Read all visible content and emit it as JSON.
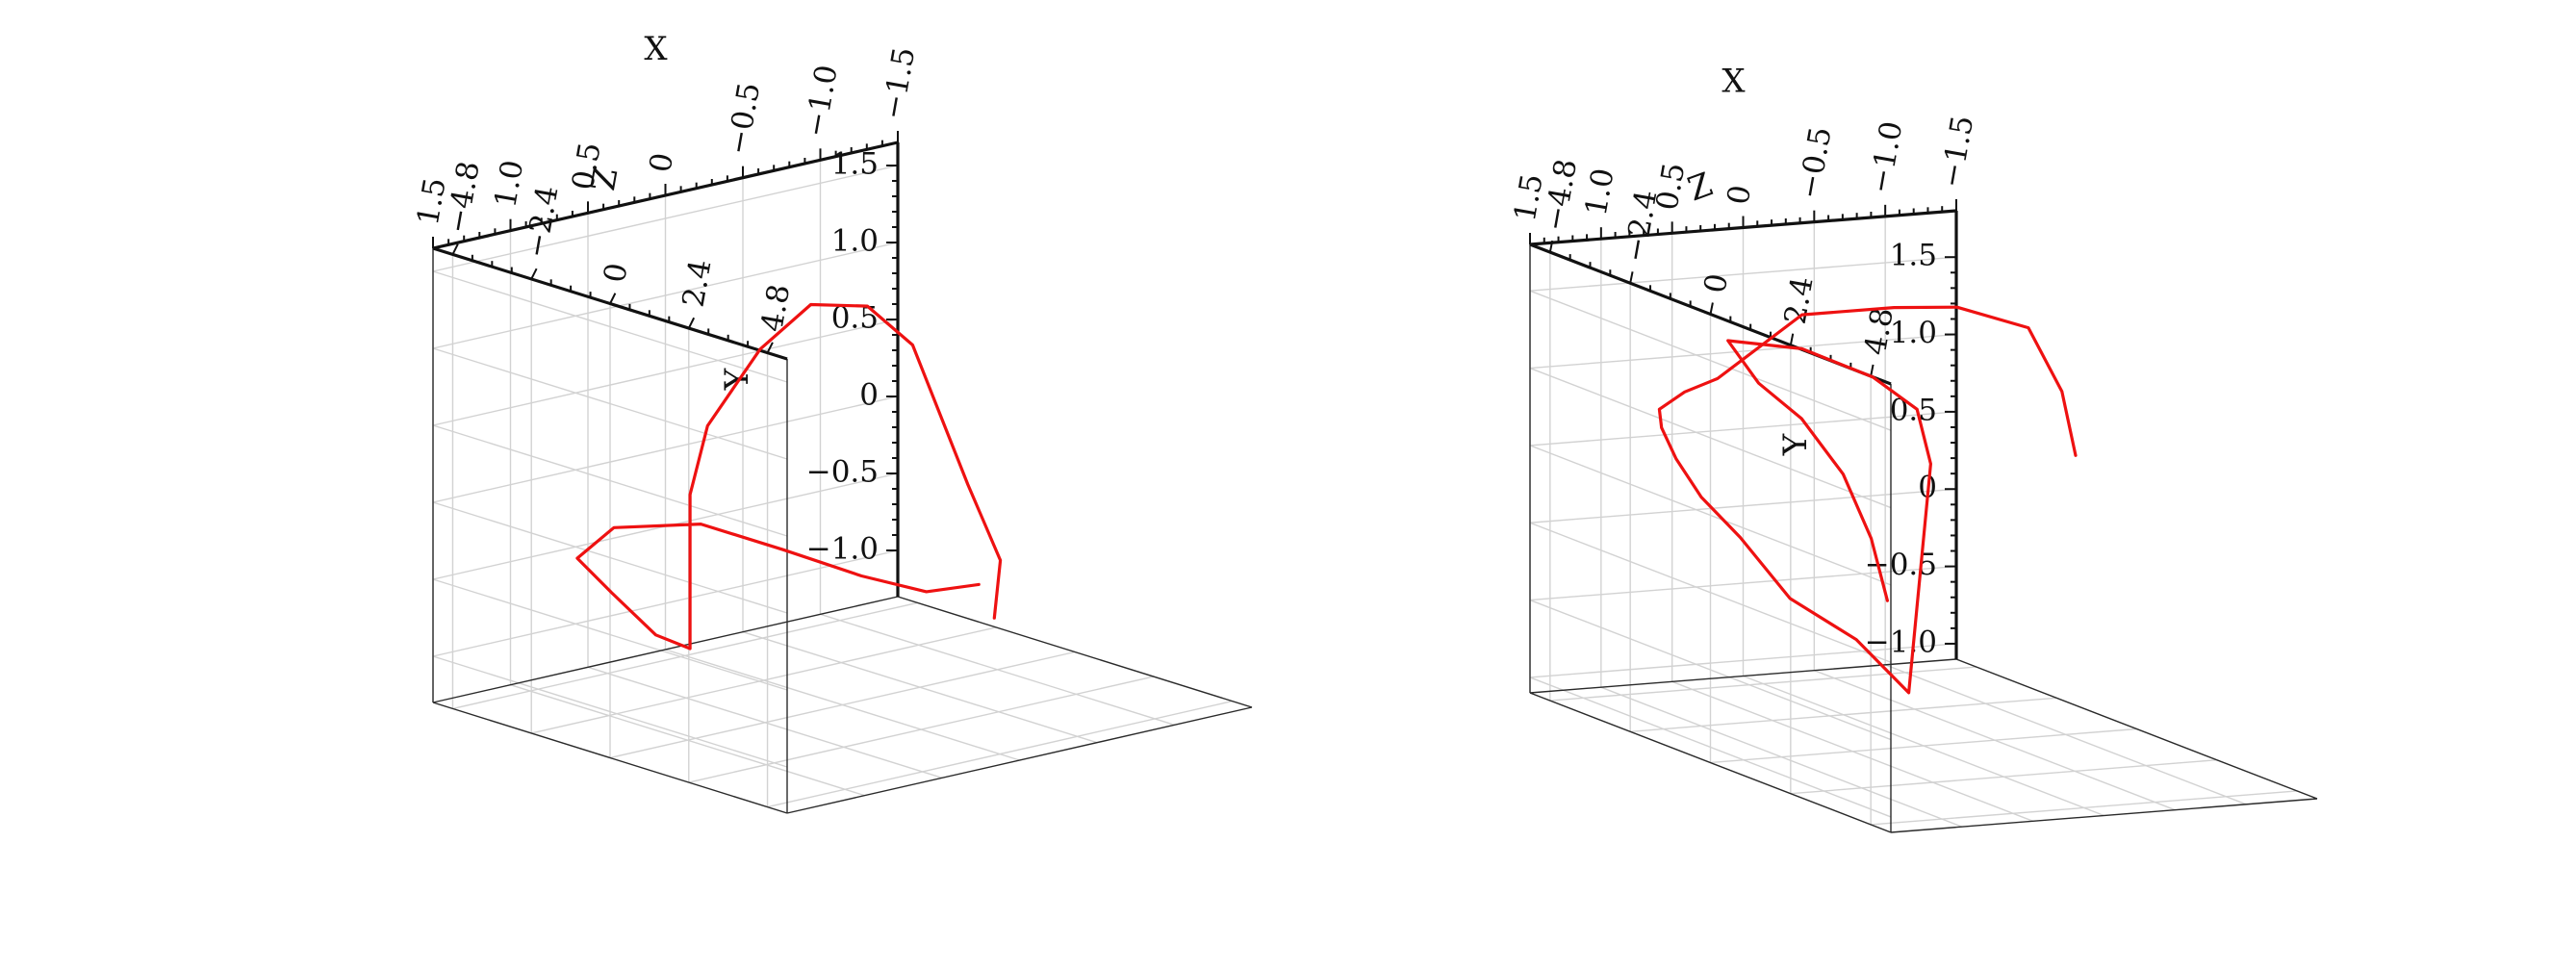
{
  "chart_data": [
    {
      "type": "line",
      "view": "azimuth ~25°, elevation ~ -22°",
      "axes": {
        "x": {
          "label": "X",
          "ticks": [
            "−1.5",
            "−1.0",
            "−0.5",
            "0",
            "0.5",
            "1.0",
            "1.5"
          ],
          "range": [
            -1.5,
            1.5
          ]
        },
        "y": {
          "label": "Y",
          "ticks": [
            "−1.0",
            "−0.5",
            "0",
            "0.5",
            "1.0",
            "1.5"
          ],
          "range": [
            -1.3,
            1.65
          ]
        },
        "z": {
          "label": "Z",
          "ticks": [
            "−4.8",
            "−2.4",
            "0",
            "2.4",
            "4.8"
          ],
          "range": [
            -5.4,
            5.4
          ]
        }
      },
      "grid": true,
      "series": [
        {
          "color": "#ee1111",
          "x": [
            -0.88,
            -0.58,
            -0.25,
            0.17,
            0.65,
            1.2,
            1.5,
            1.49,
            1.48,
            1.46,
            1.46,
            1.4,
            1.06,
            0.67,
            0.22,
            -0.22,
            -0.53,
            -0.82,
            -1.03,
            -0.98
          ],
          "y": [
            -0.72,
            -0.71,
            -0.56,
            -0.32,
            -0.06,
            0.04,
            -0.07,
            -0.23,
            -0.42,
            -0.45,
            0.55,
            1.0,
            1.42,
            1.6,
            1.46,
            1.06,
            0.53,
            -0.06,
            -0.6,
            -0.96
          ],
          "z": [
            0.0,
            -0.18,
            -0.6,
            -1.0,
            -1.25,
            -1.3,
            -1.0,
            0.0,
            1.3,
            2.25,
            2.25,
            2.5,
            2.5,
            2.2,
            1.8,
            1.1,
            0.4,
            -0.05,
            -0.05,
            0.0
          ]
        }
      ]
    },
    {
      "type": "line",
      "view": "azimuth ~-25°, elevation ~ -20°",
      "axes": {
        "x": {
          "label": "X",
          "ticks": [
            "−1.5",
            "−1.0",
            "−0.5",
            "0",
            "0.5",
            "1.0",
            "1.5"
          ],
          "range": [
            -1.5,
            1.5
          ]
        },
        "y": {
          "label": "Y",
          "ticks": [
            "−1.0",
            "−0.5",
            "0",
            "0.5",
            "1.0",
            "1.5"
          ],
          "range": [
            -1.1,
            1.8
          ]
        },
        "z": {
          "label": "Z",
          "ticks": [
            "−4.8",
            "−2.4",
            "0",
            "2.4",
            "4.8"
          ],
          "range": [
            -5.4,
            5.4
          ]
        }
      },
      "grid": true,
      "series": [
        {
          "color": "#ee1111",
          "x": [
            -1.07,
            -0.95,
            -0.62,
            0.0,
            0.42,
            0.95,
            1.45,
            1.47,
            1.46,
            1.35,
            1.2,
            1.0,
            0.75,
            0.47,
            0.12,
            -0.06,
            -0.05,
            0.14,
            0.45,
            0.88,
            1.33,
            1.49,
            1.47,
            1.46,
            1.45,
            1.43
          ],
          "y": [
            0.7,
            1.13,
            1.6,
            1.82,
            1.84,
            1.79,
            1.38,
            1.22,
            1.04,
            0.88,
            0.65,
            0.38,
            0.11,
            -0.28,
            -0.53,
            -0.82,
            0.72,
            1.12,
            1.35,
            1.54,
            1.6,
            1.47,
            1.34,
            1.08,
            0.73,
            0.36
          ],
          "z": [
            0.0,
            0.1,
            0.5,
            1.0,
            0.9,
            0.4,
            0.0,
            -0.9,
            -1.7,
            -2.1,
            -2.3,
            -2.4,
            -2.3,
            -2.0,
            -1.5,
            -0.7,
            0.0,
            0.4,
            0.4,
            0.1,
            -0.2,
            1.4,
            2.6,
            3.8,
            4.6,
            5.0
          ]
        }
      ]
    }
  ]
}
